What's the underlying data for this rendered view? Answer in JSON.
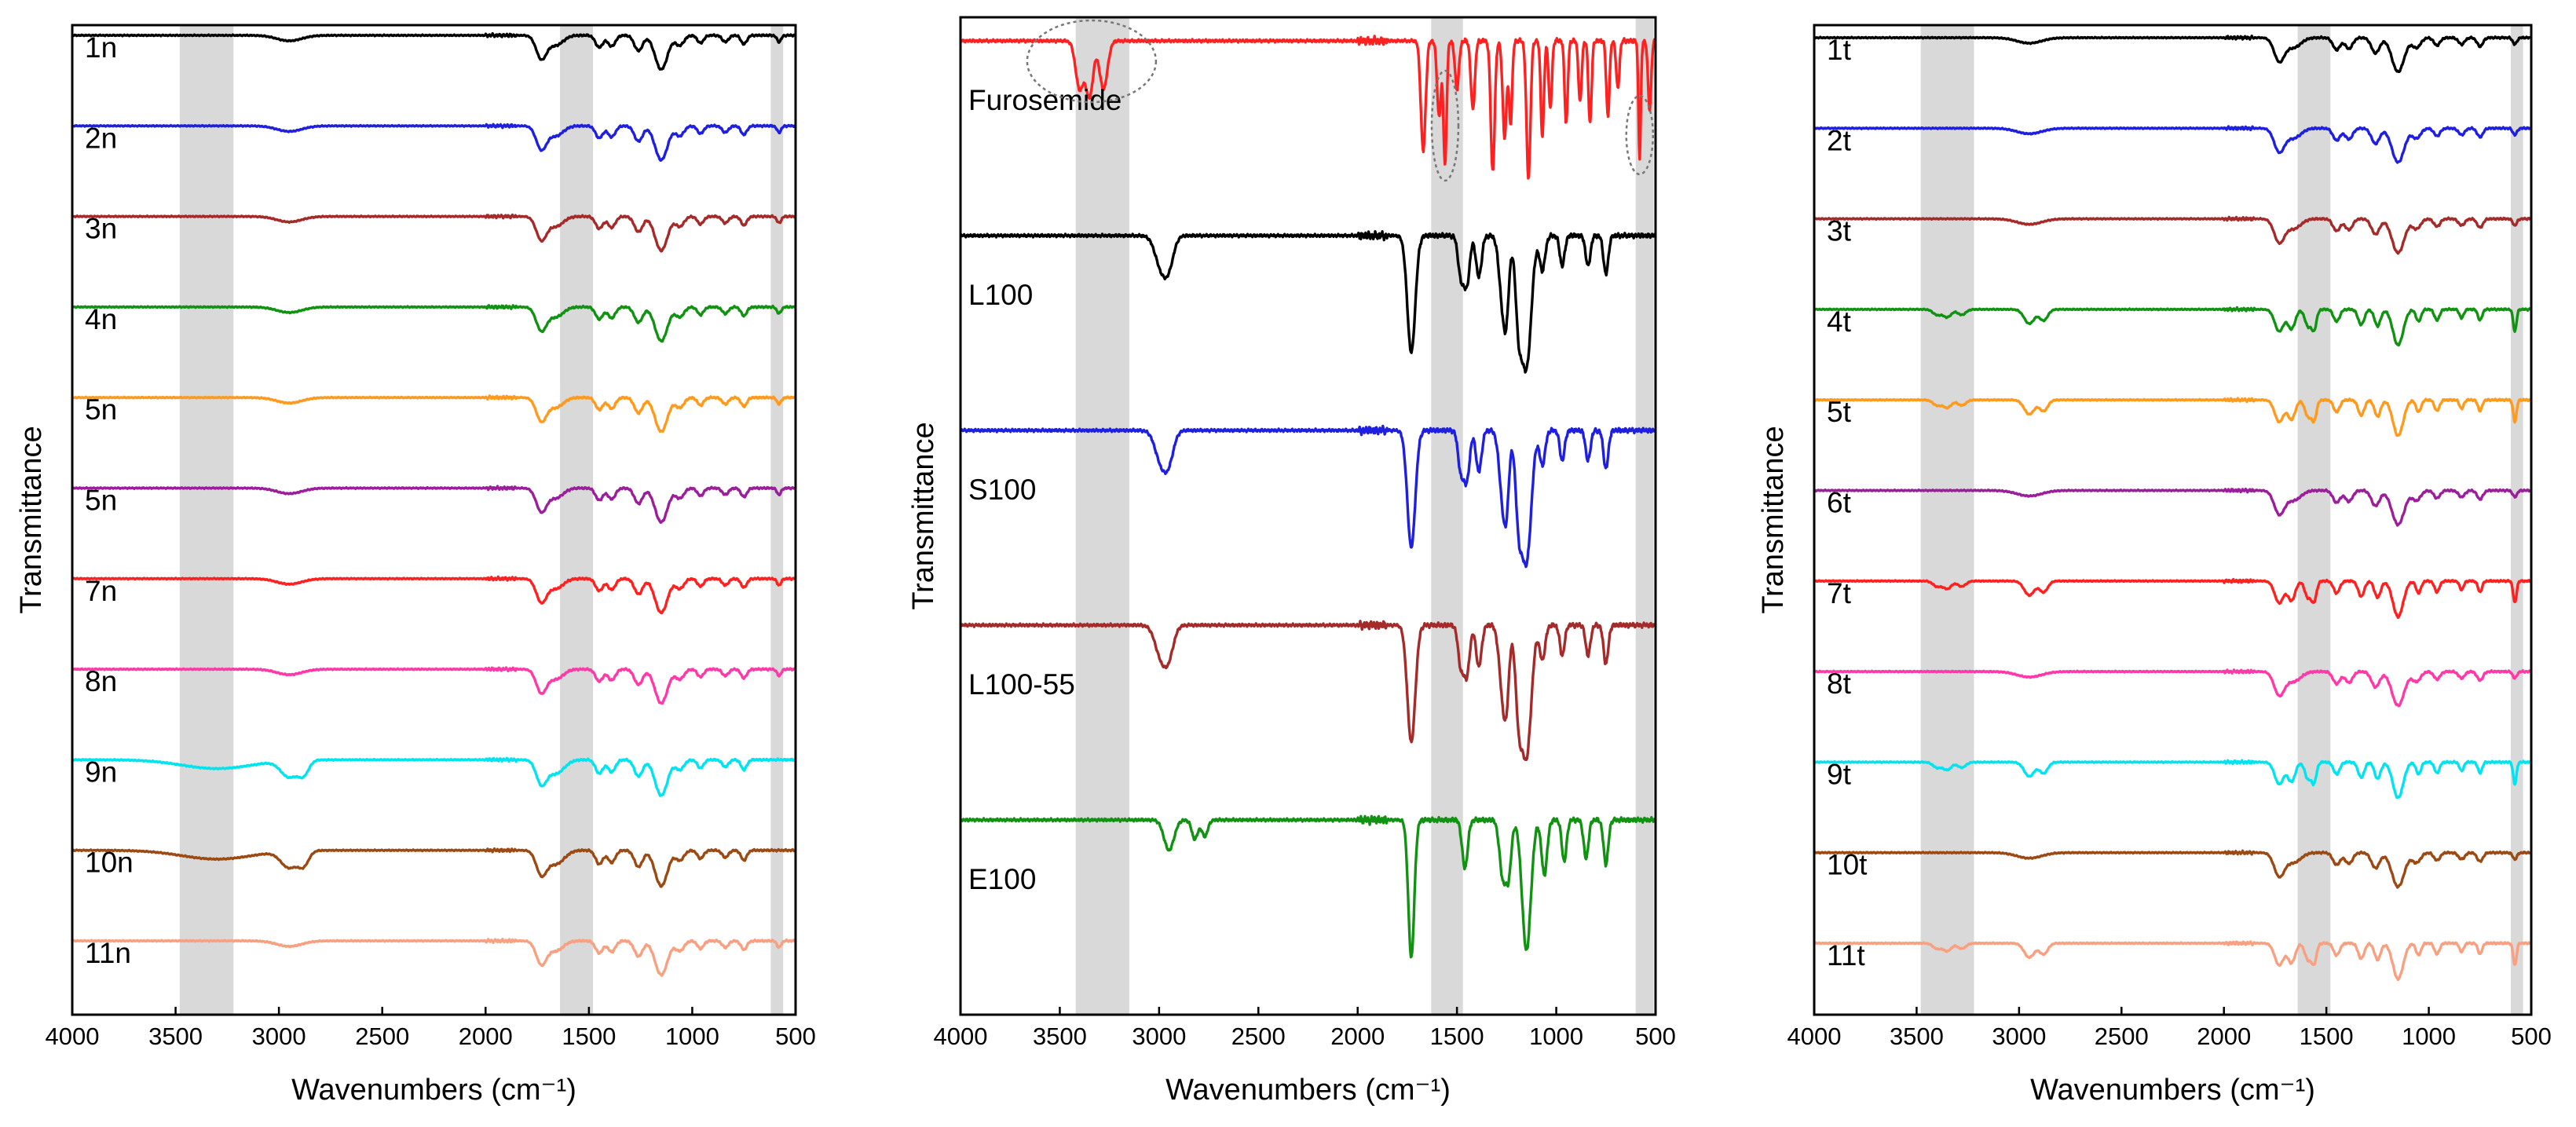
{
  "chart_data": [
    {
      "type": "line",
      "panel": "left",
      "title": "",
      "xlabel": "Wavenumbers (cm⁻¹)",
      "ylabel": "Transmittance",
      "xlim": [
        4000,
        500
      ],
      "xticks": [
        4000,
        3500,
        3000,
        2500,
        2000,
        1500,
        1000,
        500
      ],
      "shaded_bands": [
        [
          3480,
          3220
        ],
        [
          1640,
          1480
        ],
        [
          620,
          560
        ]
      ],
      "series": [
        {
          "name": "1n",
          "color": "#000000",
          "profile": "eudragit"
        },
        {
          "name": "2n",
          "color": "#1f1fe0",
          "profile": "eudragit"
        },
        {
          "name": "3n",
          "color": "#a52a2a",
          "profile": "eudragit"
        },
        {
          "name": "4n",
          "color": "#129212",
          "profile": "eudragit"
        },
        {
          "name": "5n",
          "color": "#ff9a1c",
          "profile": "eudragit"
        },
        {
          "name": "5n",
          "color": "#9b1f9b",
          "profile": "eudragit"
        },
        {
          "name": "7n",
          "color": "#ff2020",
          "profile": "eudragit"
        },
        {
          "name": "8n",
          "color": "#ff3aa8",
          "profile": "eudragit"
        },
        {
          "name": "9n",
          "color": "#00e4f0",
          "profile": "broad"
        },
        {
          "name": "10n",
          "color": "#9c4a14",
          "profile": "broad"
        },
        {
          "name": "11n",
          "color": "#f8a080",
          "profile": "eudragit"
        }
      ]
    },
    {
      "type": "line",
      "panel": "middle",
      "title": "",
      "xlabel": "Wavenumbers (cm⁻¹)",
      "ylabel": "Transmittance",
      "xlim": [
        4000,
        500
      ],
      "xticks": [
        4000,
        3500,
        3000,
        2500,
        2000,
        1500,
        1000,
        500
      ],
      "xtick_labels": [
        "4000",
        "3500",
        "3000",
        "2500",
        "2000",
        "1500",
        "1000",
        "500"
      ],
      "shaded_bands": [
        [
          3420,
          3150
        ],
        [
          1630,
          1470
        ],
        [
          600,
          510
        ]
      ],
      "series": [
        {
          "name": "Furosemide",
          "color": "#ff2020",
          "profile": "furosemide"
        },
        {
          "name": "L100",
          "color": "#000000",
          "profile": "polymer"
        },
        {
          "name": "S100",
          "color": "#1f1fe0",
          "profile": "polymer"
        },
        {
          "name": "L100-55",
          "color": "#a52a2a",
          "profile": "polymer"
        },
        {
          "name": "E100",
          "color": "#129212",
          "profile": "e100"
        }
      ]
    },
    {
      "type": "line",
      "panel": "right",
      "title": "",
      "xlabel": "Wavenumbers (cm⁻¹)",
      "ylabel": "Transmittance",
      "xlim": [
        4000,
        500
      ],
      "xticks": [
        4000,
        3500,
        3000,
        2500,
        2000,
        1500,
        1000,
        500
      ],
      "shaded_bands": [
        [
          3480,
          3220
        ],
        [
          1640,
          1480
        ],
        [
          600,
          540
        ]
      ],
      "series": [
        {
          "name": "1t",
          "color": "#000000",
          "profile": "eudragit"
        },
        {
          "name": "2t",
          "color": "#1f1fe0",
          "profile": "eudragit"
        },
        {
          "name": "3t",
          "color": "#a52a2a",
          "profile": "eudragit"
        },
        {
          "name": "4t",
          "color": "#129212",
          "profile": "drug"
        },
        {
          "name": "5t",
          "color": "#ff9a1c",
          "profile": "drug"
        },
        {
          "name": "6t",
          "color": "#9b1f9b",
          "profile": "eudragit"
        },
        {
          "name": "7t",
          "color": "#ff2020",
          "profile": "drug"
        },
        {
          "name": "8t",
          "color": "#ff3aa8",
          "profile": "eudragit"
        },
        {
          "name": "9t",
          "color": "#00e4f0",
          "profile": "drug"
        },
        {
          "name": "10t",
          "color": "#9c4a14",
          "profile": "eudragit"
        },
        {
          "name": "11t",
          "color": "#f8a080",
          "profile": "drug"
        }
      ]
    }
  ]
}
